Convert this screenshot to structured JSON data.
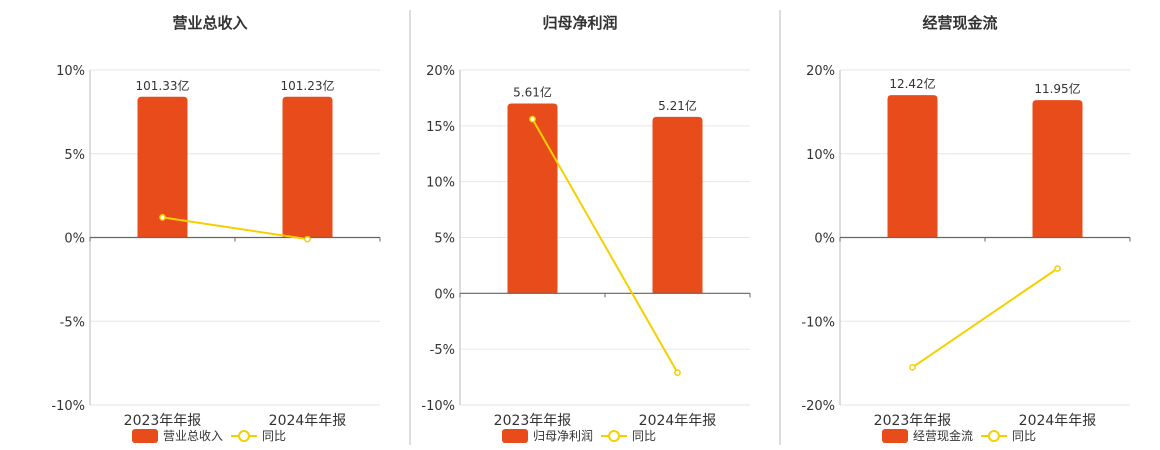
{
  "colors": {
    "bar": "#E84C1A",
    "line": "#F5D000",
    "grid": "#E6E6E6",
    "axis": "#666666",
    "separator": "#BBBBBB",
    "text": "#333333"
  },
  "legend": {
    "yoy_label": "同比"
  },
  "chart_data": [
    {
      "type": "bar",
      "title": "营业总收入",
      "categories": [
        "2023年年报",
        "2024年年报"
      ],
      "series": [
        {
          "name": "营业总收入",
          "type": "bar",
          "values": [
            8.4,
            8.4
          ],
          "labels": [
            "101.33亿",
            "101.23亿"
          ]
        },
        {
          "name": "同比",
          "type": "line",
          "values": [
            1.2,
            -0.1
          ]
        }
      ],
      "yticks": [
        "10%",
        "5%",
        "0%",
        "-5%",
        "-10%"
      ],
      "ylim": [
        -10,
        10
      ],
      "grid": true,
      "legend_position": "bottom"
    },
    {
      "type": "bar",
      "title": "归母净利润",
      "categories": [
        "2023年年报",
        "2024年年报"
      ],
      "series": [
        {
          "name": "归母净利润",
          "type": "bar",
          "values": [
            17.0,
            15.8
          ],
          "labels": [
            "5.61亿",
            "5.21亿"
          ]
        },
        {
          "name": "同比",
          "type": "line",
          "values": [
            15.6,
            -7.1
          ]
        }
      ],
      "yticks": [
        "20%",
        "15%",
        "10%",
        "5%",
        "0%",
        "-5%",
        "-10%"
      ],
      "ylim": [
        -10,
        20
      ],
      "grid": true,
      "legend_position": "bottom"
    },
    {
      "type": "bar",
      "title": "经营现金流",
      "categories": [
        "2023年年报",
        "2024年年报"
      ],
      "series": [
        {
          "name": "经营现金流",
          "type": "bar",
          "values": [
            17.0,
            16.4
          ],
          "labels": [
            "12.42亿",
            "11.95亿"
          ]
        },
        {
          "name": "同比",
          "type": "line",
          "values": [
            -15.5,
            -3.7
          ]
        }
      ],
      "yticks": [
        "20%",
        "10%",
        "0%",
        "-10%",
        "-20%"
      ],
      "ylim": [
        -20,
        20
      ],
      "grid": true,
      "legend_position": "bottom"
    }
  ]
}
